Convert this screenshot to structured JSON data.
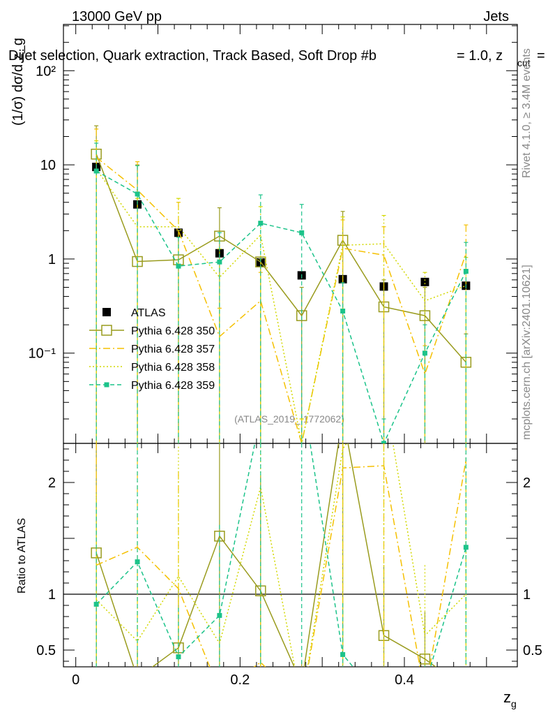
{
  "header": {
    "energy": "13000 GeV pp",
    "category": "Jets",
    "title": "Dijet selection, Quark extraction, Track Based, Soft Drop #b",
    "title_suffix": "= 1.0, z",
    "title_sub": "cut",
    "title_end": "=",
    "rivet": "Rivet 4.1.0, ≥ 3.4M events",
    "mcplots": "mcplots.cern.ch [arXiv:2401.10621]",
    "analysis": "(ATLAS_2019_I1772062)"
  },
  "chart_data": [
    {
      "type": "scatter",
      "title": "Dijet selection, Quark extraction, Track Based, Soft Drop #b = 1.0, z_cut =",
      "xlabel": "z_g",
      "ylabel": "(1/σ) dσ/d z_g",
      "yscale": "log",
      "xlim": [
        -0.015,
        0.5375
      ],
      "ylim": [
        0.011,
        310
      ],
      "y_tick_labels": [
        "10⁻¹",
        "1",
        "10",
        "10²"
      ],
      "x": [
        0.025,
        0.075,
        0.125,
        0.175,
        0.225,
        0.275,
        0.325,
        0.375,
        0.425,
        0.475
      ],
      "series": [
        {
          "name": "ATLAS",
          "color": "#000000",
          "style": "data",
          "values": [
            9.5,
            3.8,
            1.9,
            1.15,
            0.92,
            0.67,
            0.61,
            0.51,
            0.57,
            0.52
          ]
        },
        {
          "name": "Pythia 6.428 350",
          "color": "#999b1d",
          "style": "solid-open-square",
          "values": [
            13.0,
            0.94,
            0.98,
            1.75,
            0.93,
            0.25,
            1.58,
            0.31,
            0.25,
            0.08
          ],
          "err_hi": [
            26,
            10,
            2.0,
            3.5,
            1.0,
            0.5,
            3.2,
            0.6,
            0.5,
            0.16
          ]
        },
        {
          "name": "Pythia 6.428 357",
          "color": "#f5c000",
          "style": "dashdot",
          "values": [
            12.0,
            5.4,
            2.0,
            0.15,
            0.36,
            0.011,
            1.3,
            1.1,
            0.06,
            1.15
          ],
          "err_hi": [
            24,
            10.8,
            4.0,
            0.3,
            0.72,
            0.02,
            2.6,
            2.2,
            0.12,
            2.3
          ]
        },
        {
          "name": "Pythia 6.428 358",
          "color": "#d2d800",
          "style": "dotted",
          "values": [
            9.0,
            2.2,
            2.2,
            0.64,
            1.8,
            0.011,
            1.4,
            1.45,
            0.36,
            0.52
          ],
          "err_hi": [
            18,
            4.4,
            4.4,
            1.28,
            3.6,
            0.02,
            2.8,
            2.9,
            0.72,
            1.04
          ]
        },
        {
          "name": "Pythia 6.428 359",
          "color": "#1cc38a",
          "style": "dashed-filled-square",
          "values": [
            8.6,
            4.9,
            0.84,
            0.93,
            2.4,
            1.9,
            0.28,
            0.011,
            0.1,
            0.74
          ],
          "err_hi": [
            17,
            9.8,
            1.7,
            1.9,
            4.8,
            3.8,
            0.56,
            0.02,
            0.2,
            1.5
          ]
        }
      ]
    },
    {
      "type": "line",
      "ylabel": "Ratio to ATLAS",
      "xlabel": "z_g",
      "xlim": [
        -0.015,
        0.5375
      ],
      "ylim": [
        0.35,
        2.35
      ],
      "y_ticks": [
        0.5,
        1,
        2
      ],
      "y_tick_labels": [
        "0.5",
        "1",
        "2"
      ],
      "x_ticks": [
        0,
        0.2,
        0.4
      ],
      "x_tick_labels": [
        "0",
        "0.2",
        "0.4"
      ],
      "x": [
        0.025,
        0.075,
        0.125,
        0.175,
        0.225,
        0.275,
        0.325,
        0.375,
        0.425,
        0.475
      ],
      "series": [
        {
          "name": "Pythia 6.428 350",
          "color": "#999b1d",
          "values": [
            1.37,
            0.25,
            0.52,
            1.52,
            1.03,
            0.2,
            2.6,
            0.63,
            0.42,
            0.15
          ]
        },
        {
          "name": "Pythia 6.428 357",
          "color": "#f5c000",
          "values": [
            1.26,
            1.42,
            1.05,
            0.13,
            0.39,
            0.02,
            2.13,
            2.15,
            0.1,
            2.2
          ]
        },
        {
          "name": "Pythia 6.428 358",
          "color": "#d2d800",
          "values": [
            0.95,
            0.58,
            1.16,
            0.56,
            1.96,
            0.02,
            2.3,
            2.84,
            0.63,
            1.0
          ]
        },
        {
          "name": "Pythia 6.428 359",
          "color": "#1cc38a",
          "values": [
            0.91,
            1.29,
            0.44,
            0.81,
            2.6,
            2.84,
            0.46,
            0.02,
            0.18,
            1.42
          ]
        }
      ]
    }
  ]
}
